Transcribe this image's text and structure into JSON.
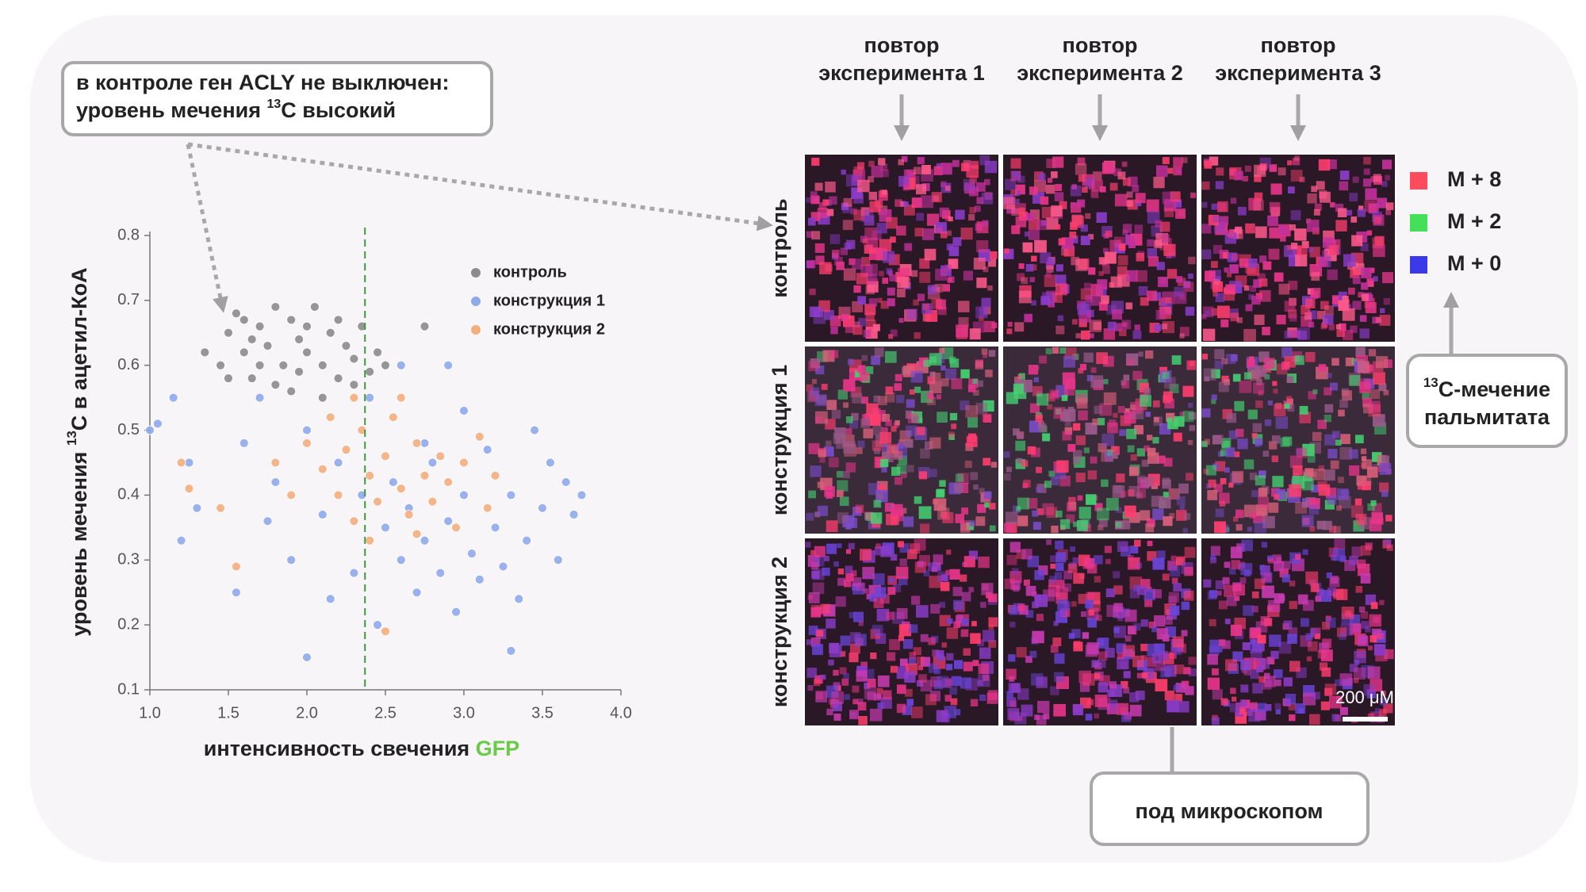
{
  "chart_data": {
    "type": "scatter",
    "x_label": {
      "text": "интенсивность свечения ",
      "highlight": "GFP",
      "highlight_color": "#66cc44"
    },
    "y_label": {
      "before": "уровень мечения ",
      "sup": "13",
      "after": "C в ацетил-КоА"
    },
    "xlim": [
      1.0,
      4.0
    ],
    "ylim": [
      0.1,
      0.8
    ],
    "xticks": [
      {
        "value": 1,
        "label": "1.0"
      },
      1.5,
      {
        "value": 2,
        "label": "2.0"
      },
      2.5,
      {
        "value": 3,
        "label": "3.0"
      },
      3.5,
      {
        "value": 4,
        "label": "4.0"
      }
    ],
    "yticks": [
      0.1,
      0.2,
      0.3,
      0.4,
      0.5,
      0.6,
      0.7,
      0.8
    ],
    "grid": false,
    "legend": "upper right",
    "vline": {
      "x": 2.37,
      "color": "#3a9a3a"
    },
    "series": [
      {
        "name": "контроль",
        "color": "#8c8c8c",
        "x": [
          1.45,
          1.5,
          1.55,
          1.6,
          1.65,
          1.7,
          1.75,
          1.8,
          1.85,
          1.9,
          1.95,
          2.0,
          2.05,
          2.1,
          2.15,
          2.2,
          2.25,
          2.3,
          2.35,
          2.4,
          2.45,
          1.5,
          1.7,
          1.9,
          2.0,
          2.2,
          1.6,
          1.35,
          2.5,
          2.75,
          1.8,
          2.1,
          1.65,
          2.3,
          1.95
        ],
        "y": [
          0.6,
          0.65,
          0.68,
          0.62,
          0.58,
          0.66,
          0.63,
          0.69,
          0.6,
          0.67,
          0.64,
          0.62,
          0.69,
          0.6,
          0.65,
          0.58,
          0.63,
          0.61,
          0.66,
          0.59,
          0.62,
          0.58,
          0.6,
          0.56,
          0.66,
          0.67,
          0.67,
          0.62,
          0.6,
          0.66,
          0.57,
          0.55,
          0.64,
          0.57,
          0.59
        ]
      },
      {
        "name": "конструкция 1",
        "color": "#8eaaea",
        "x": [
          1.0,
          1.05,
          1.15,
          1.25,
          1.3,
          1.2,
          1.55,
          1.6,
          1.7,
          1.8,
          1.9,
          2.0,
          2.0,
          2.1,
          2.2,
          2.3,
          2.4,
          2.5,
          2.55,
          2.6,
          2.65,
          2.7,
          2.75,
          2.8,
          2.85,
          2.9,
          2.95,
          3.0,
          3.05,
          3.1,
          3.15,
          3.2,
          3.25,
          3.3,
          3.35,
          3.4,
          3.45,
          3.5,
          3.55,
          3.6,
          3.65,
          3.7,
          3.75,
          2.6,
          2.9,
          3.3,
          2.45,
          2.75,
          3.0,
          2.35,
          1.75,
          2.15
        ],
        "y": [
          0.5,
          0.51,
          0.55,
          0.45,
          0.38,
          0.33,
          0.25,
          0.48,
          0.55,
          0.42,
          0.3,
          0.15,
          0.5,
          0.37,
          0.45,
          0.28,
          0.55,
          0.35,
          0.42,
          0.3,
          0.38,
          0.25,
          0.33,
          0.45,
          0.28,
          0.36,
          0.22,
          0.4,
          0.31,
          0.27,
          0.47,
          0.35,
          0.29,
          0.4,
          0.24,
          0.33,
          0.5,
          0.38,
          0.45,
          0.3,
          0.42,
          0.37,
          0.4,
          0.6,
          0.6,
          0.16,
          0.2,
          0.48,
          0.53,
          0.4,
          0.36,
          0.24
        ]
      },
      {
        "name": "конструкция 2",
        "color": "#f2ae7c",
        "x": [
          1.2,
          1.25,
          1.45,
          1.55,
          1.8,
          2.0,
          2.1,
          2.15,
          2.2,
          2.25,
          2.3,
          2.35,
          2.4,
          2.45,
          2.5,
          2.55,
          2.6,
          2.65,
          2.7,
          2.75,
          2.8,
          2.85,
          2.9,
          2.95,
          3.0,
          3.1,
          3.2,
          2.5,
          2.4,
          2.6,
          1.9,
          3.15,
          2.3,
          2.7
        ],
        "y": [
          0.45,
          0.41,
          0.38,
          0.29,
          0.45,
          0.48,
          0.44,
          0.52,
          0.4,
          0.47,
          0.36,
          0.5,
          0.43,
          0.39,
          0.46,
          0.52,
          0.41,
          0.37,
          0.48,
          0.43,
          0.39,
          0.46,
          0.42,
          0.35,
          0.45,
          0.49,
          0.43,
          0.19,
          0.33,
          0.55,
          0.4,
          0.38,
          0.55,
          0.34
        ]
      }
    ]
  },
  "callout_control": {
    "line1": "в контроле ген ACLY не выключен:",
    "line2_before": "уровень мечения ",
    "line2_sup": "13",
    "line2_after": "C высокий"
  },
  "microscopy": {
    "columns": [
      {
        "line1": "повтор",
        "line2": "эксперимента 1"
      },
      {
        "line1": "повтор",
        "line2": "эксперимента 2"
      },
      {
        "line1": "повтор",
        "line2": "эксперимента 3"
      }
    ],
    "rows": [
      "контроль",
      "конструкция 1",
      "конструкция 2"
    ],
    "scale_bar": "200 μM",
    "legend": [
      {
        "label": "M + 8",
        "color": "#ff4b5c"
      },
      {
        "label": "M + 2",
        "color": "#44e05a"
      },
      {
        "label": "M + 0",
        "color": "#3a3ae8"
      }
    ],
    "legend_callout": {
      "sup": "13",
      "line1": "C-мечение",
      "line2": "пальмитата"
    },
    "microscope_callout": "под микроскопом"
  }
}
